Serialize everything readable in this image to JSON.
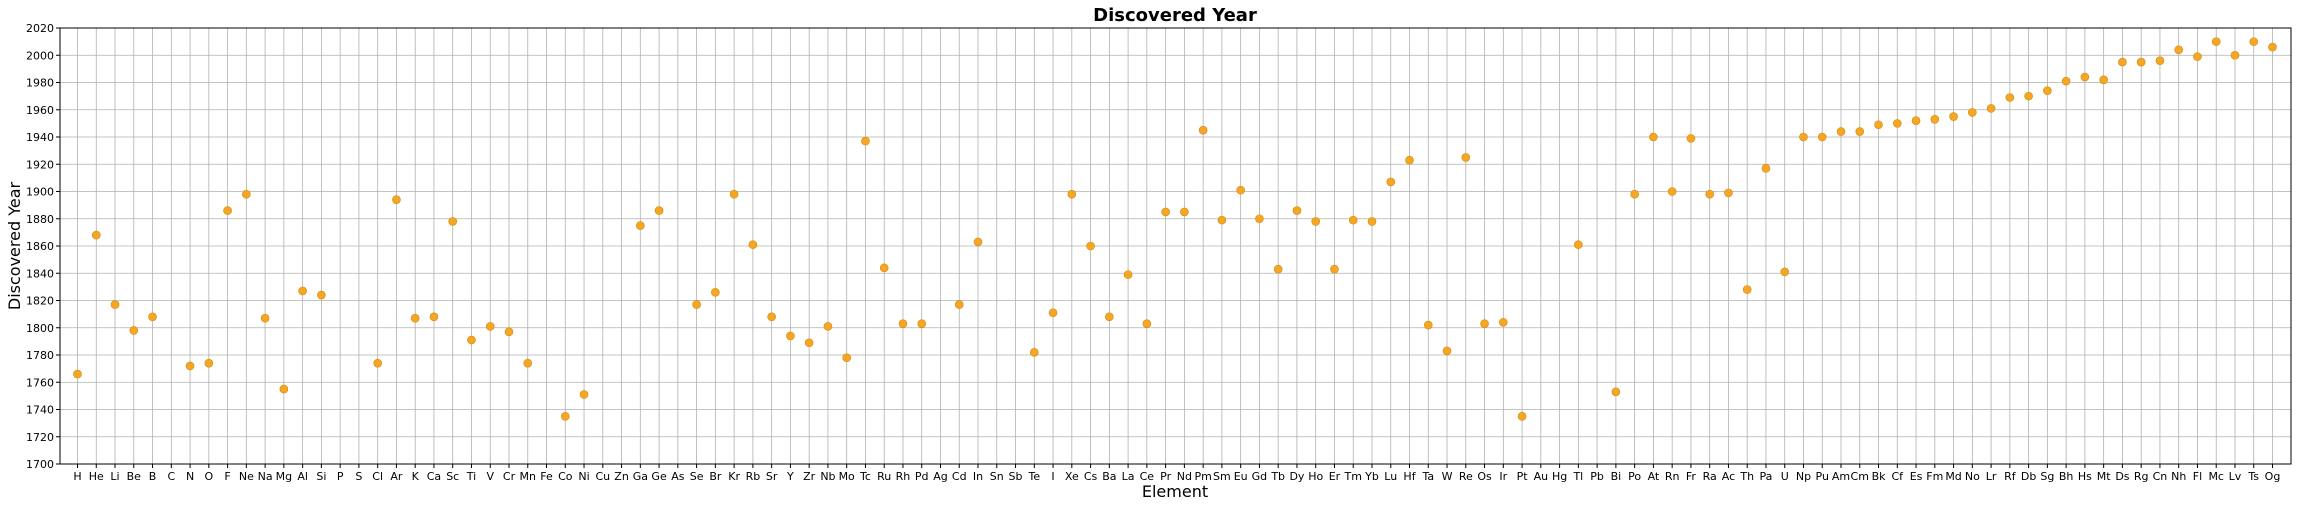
{
  "chart_data": {
    "type": "scatter",
    "title": "Discovered Year",
    "xlabel": "Element",
    "ylabel": "Discovered Year",
    "ylim": [
      1700,
      2020
    ],
    "yticks": [
      1700,
      1720,
      1740,
      1760,
      1780,
      1800,
      1820,
      1840,
      1860,
      1880,
      1900,
      1920,
      1940,
      1960,
      1980,
      2000,
      2020
    ],
    "grid": true,
    "marker_color": "#f5a623",
    "categories": [
      "H",
      "He",
      "Li",
      "Be",
      "B",
      "C",
      "N",
      "O",
      "F",
      "Ne",
      "Na",
      "Mg",
      "Al",
      "Si",
      "P",
      "S",
      "Cl",
      "Ar",
      "K",
      "Ca",
      "Sc",
      "Ti",
      "V",
      "Cr",
      "Mn",
      "Fe",
      "Co",
      "Ni",
      "Cu",
      "Zn",
      "Ga",
      "Ge",
      "As",
      "Se",
      "Br",
      "Kr",
      "Rb",
      "Sr",
      "Y",
      "Zr",
      "Nb",
      "Mo",
      "Tc",
      "Ru",
      "Rh",
      "Pd",
      "Ag",
      "Cd",
      "In",
      "Sn",
      "Sb",
      "Te",
      "I",
      "Xe",
      "Cs",
      "Ba",
      "La",
      "Ce",
      "Pr",
      "Nd",
      "Pm",
      "Sm",
      "Eu",
      "Gd",
      "Tb",
      "Dy",
      "Ho",
      "Er",
      "Tm",
      "Yb",
      "Lu",
      "Hf",
      "Ta",
      "W",
      "Re",
      "Os",
      "Ir",
      "Pt",
      "Au",
      "Hg",
      "Tl",
      "Pb",
      "Bi",
      "Po",
      "At",
      "Rn",
      "Fr",
      "Ra",
      "Ac",
      "Th",
      "Pa",
      "U",
      "Np",
      "Pu",
      "Am",
      "Cm",
      "Bk",
      "Cf",
      "Es",
      "Fm",
      "Md",
      "No",
      "Lr",
      "Rf",
      "Db",
      "Sg",
      "Bh",
      "Hs",
      "Mt",
      "Ds",
      "Rg",
      "Cn",
      "Nh",
      "Fl",
      "Mc",
      "Lv",
      "Ts",
      "Og"
    ],
    "values": [
      1766,
      1868,
      1817,
      1798,
      1808,
      null,
      1772,
      1774,
      1886,
      1898,
      1807,
      1755,
      1827,
      1824,
      null,
      null,
      1774,
      1894,
      1807,
      1808,
      1878,
      1791,
      1801,
      1797,
      1774,
      null,
      1735,
      1751,
      null,
      null,
      1875,
      1886,
      null,
      1817,
      1826,
      1898,
      1861,
      1808,
      1794,
      1789,
      1801,
      1778,
      1937,
      1844,
      1803,
      1803,
      null,
      1817,
      1863,
      null,
      null,
      1782,
      1811,
      1898,
      1860,
      1808,
      1839,
      1803,
      1885,
      1885,
      1945,
      1879,
      1901,
      1880,
      1843,
      1886,
      1878,
      1843,
      1879,
      1878,
      1907,
      1923,
      1802,
      1783,
      1925,
      1803,
      1804,
      1735,
      null,
      null,
      1861,
      null,
      1753,
      1898,
      1940,
      1900,
      1939,
      1898,
      1899,
      1828,
      1917,
      1841,
      1940,
      1940,
      1944,
      1944,
      1949,
      1950,
      1952,
      1953,
      1955,
      1958,
      1961,
      1969,
      1970,
      1974,
      1981,
      1984,
      1982,
      1995,
      1995,
      1996,
      2004,
      1999,
      2010,
      2000,
      2010,
      2006
    ]
  }
}
